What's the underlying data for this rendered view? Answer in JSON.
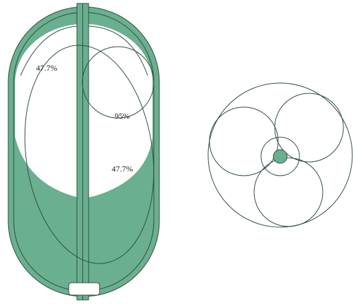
{
  "labels": [
    "47.7%",
    "95%",
    "47.7%"
  ]
}
